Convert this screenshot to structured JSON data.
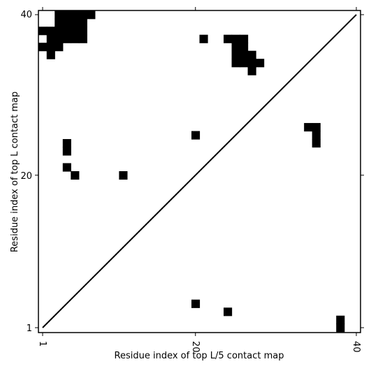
{
  "chart_data": {
    "type": "heatmap",
    "title": "",
    "xlabel": "Residue index of top L/5 contact map",
    "ylabel": "Residue index of top L contact map",
    "xlim": [
      1,
      40
    ],
    "ylim": [
      1,
      40
    ],
    "x_ticks": [
      1,
      20,
      40
    ],
    "y_ticks": [
      1,
      20,
      40
    ],
    "x_tick_labels": [
      "1",
      "20",
      "40"
    ],
    "y_tick_labels": [
      "1",
      "20",
      "40"
    ],
    "x_tick_rotation_deg": -90,
    "cell_color": "#000000",
    "background_color": "#ffffff",
    "diagonal": {
      "from": [
        1,
        1
      ],
      "to": [
        40,
        40
      ],
      "color": "#000000"
    },
    "cells_top_l_map": [
      [
        1,
        38
      ],
      [
        1,
        36
      ],
      [
        2,
        38
      ],
      [
        2,
        37
      ],
      [
        2,
        36
      ],
      [
        2,
        35
      ],
      [
        3,
        40
      ],
      [
        3,
        39
      ],
      [
        3,
        38
      ],
      [
        3,
        37
      ],
      [
        3,
        36
      ],
      [
        4,
        40
      ],
      [
        4,
        39
      ],
      [
        4,
        38
      ],
      [
        4,
        37
      ],
      [
        5,
        40
      ],
      [
        5,
        39
      ],
      [
        5,
        38
      ],
      [
        5,
        37
      ],
      [
        6,
        40
      ],
      [
        6,
        39
      ],
      [
        6,
        38
      ],
      [
        6,
        37
      ],
      [
        4,
        24
      ],
      [
        4,
        23
      ],
      [
        4,
        21
      ],
      [
        5,
        20
      ],
      [
        7,
        40
      ],
      [
        11,
        20
      ],
      [
        20,
        25
      ],
      [
        21,
        37
      ],
      [
        24,
        37
      ],
      [
        25,
        37
      ],
      [
        25,
        36
      ],
      [
        25,
        35
      ],
      [
        25,
        34
      ],
      [
        26,
        37
      ],
      [
        26,
        36
      ],
      [
        26,
        35
      ],
      [
        26,
        34
      ],
      [
        27,
        35
      ],
      [
        27,
        34
      ],
      [
        27,
        33
      ],
      [
        28,
        34
      ],
      [
        34,
        26
      ],
      [
        35,
        26
      ],
      [
        35,
        25
      ],
      [
        35,
        24
      ]
    ],
    "cells_top_l5_map": [
      [
        20,
        4
      ],
      [
        24,
        3
      ],
      [
        38,
        2
      ],
      [
        38,
        1
      ]
    ]
  }
}
